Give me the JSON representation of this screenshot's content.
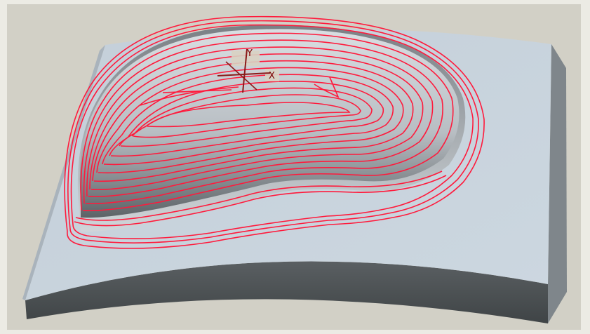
{
  "viewport": {
    "background_color": "#d2d0c6",
    "frame_color": "#ecebe4"
  },
  "part": {
    "top_color": "#c7d2dc",
    "side_color": "#7f868b",
    "front_color": "#4e5457",
    "pocket_color": "#a5abb0"
  },
  "toolpath": {
    "color": "#ff1a3c"
  },
  "csys": {
    "x_label": "X",
    "y_label": "Y",
    "color": "#8b1a1a"
  }
}
